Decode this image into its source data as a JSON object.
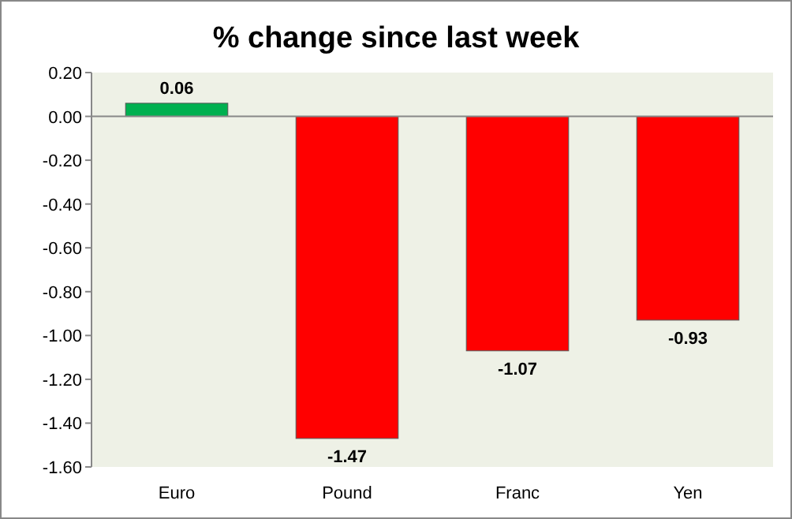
{
  "chart_data": {
    "type": "bar",
    "title": "% change since last week",
    "categories": [
      "Euro",
      "Pound",
      "Franc",
      "Yen"
    ],
    "values": [
      0.06,
      -1.47,
      -1.07,
      -0.93
    ],
    "colors": [
      "#00b050",
      "#ff0000",
      "#ff0000",
      "#ff0000"
    ],
    "ylim": [
      -1.6,
      0.2
    ],
    "yticks": [
      {
        "value": 0.2,
        "label": "0.20"
      },
      {
        "value": 0,
        "label": "0.00"
      },
      {
        "value": -0.2,
        "label": "-0.20"
      },
      {
        "value": -0.4,
        "label": "-0.40"
      },
      {
        "value": -0.6,
        "label": "-0.60"
      },
      {
        "value": -0.8,
        "label": "-0.80"
      },
      {
        "value": -1,
        "label": "-1.00"
      },
      {
        "value": -1.2,
        "label": "-1.20"
      },
      {
        "value": -1.4,
        "label": "-1.40"
      },
      {
        "value": -1.6,
        "label": "-1.60"
      }
    ],
    "data_labels": true
  }
}
